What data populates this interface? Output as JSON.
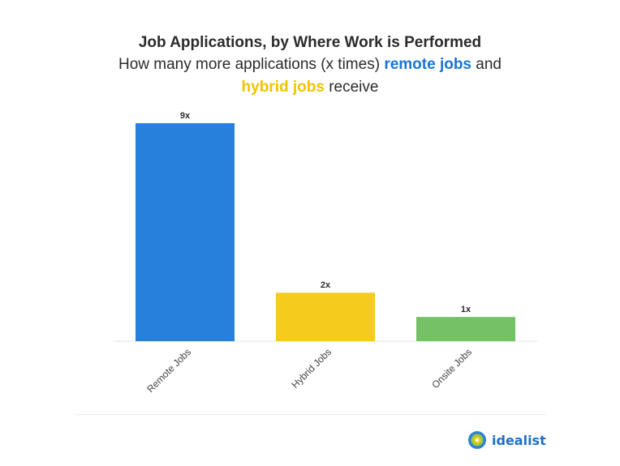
{
  "header": {
    "title": "Job Applications, by Where Work is Performed",
    "subtitle_parts": {
      "p1": "How many more applications (x times) ",
      "remote": "remote jobs",
      "p2": " and",
      "hybrid": "hybrid jobs",
      "p3": " receive"
    }
  },
  "colors": {
    "remote": "#2680dc",
    "hybrid": "#f5cb1d",
    "onsite": "#74c266",
    "remote_text": "#1a74d6",
    "hybrid_text": "#f2c200"
  },
  "chart_data": {
    "type": "bar",
    "title": "Job Applications, by Where Work is Performed",
    "subtitle": "How many more applications (x times) remote jobs and hybrid jobs receive",
    "categories": [
      "Remote Jobs",
      "Hybrid Jobs",
      "Onsite Jobs"
    ],
    "values": [
      9,
      2,
      1
    ],
    "data_labels": [
      "9x",
      "2x",
      "1x"
    ],
    "ylim": [
      0,
      9
    ],
    "grid": false,
    "legend": "none"
  },
  "brand": {
    "logo_text": "idealist"
  }
}
